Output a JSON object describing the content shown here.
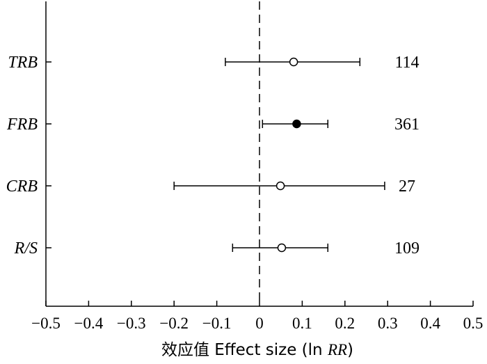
{
  "chart_data": {
    "type": "forest",
    "xlabel": "效应值 Effect size (ln RR)",
    "xlabel_parts": {
      "prefix": "效应值 Effect size (ln ",
      "italic": "RR",
      "suffix": ")"
    },
    "xlim": [
      -0.5,
      0.5
    ],
    "x_ticks": [
      -0.5,
      -0.4,
      -0.3,
      -0.2,
      -0.1,
      0,
      0.1,
      0.2,
      0.3,
      0.4,
      0.5
    ],
    "x_tick_labels": [
      "−0.5",
      "−0.4",
      "−0.3",
      "−0.2",
      "−0.1",
      "0",
      "0.1",
      "0.2",
      "0.3",
      "0.4",
      "0.5"
    ],
    "reference_line": 0,
    "reference_line_style": "dashed",
    "rows": [
      {
        "label": "TRB",
        "estimate": 0.08,
        "lower": -0.08,
        "upper": 0.235,
        "n": "114",
        "marker": "open"
      },
      {
        "label": "FRB",
        "estimate": 0.087,
        "lower": 0.007,
        "upper": 0.16,
        "n": "361",
        "marker": "filled"
      },
      {
        "label": "CRB",
        "estimate": 0.049,
        "lower": -0.2,
        "upper": 0.293,
        "n": "27",
        "marker": "open"
      },
      {
        "label": "R/S",
        "estimate": 0.052,
        "lower": -0.063,
        "upper": 0.16,
        "n": "109",
        "marker": "open"
      }
    ]
  }
}
